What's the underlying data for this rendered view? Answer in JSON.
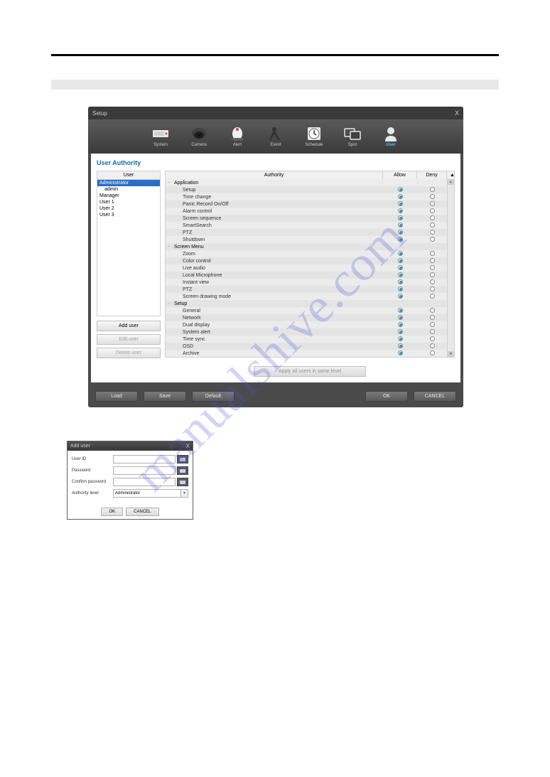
{
  "colors": {
    "accent": "#1a6aa8",
    "toolbar_active": "#4fc3e8",
    "radio_on": "#2a9ad0",
    "selection": "#2a6ec8",
    "row_odd": "#ececec",
    "row_even": "#e4e4e4"
  },
  "typography": {
    "base_font": "Arial",
    "title_pt": 9,
    "body_pt": 7
  },
  "watermark": "manualshive.com",
  "setup": {
    "title": "Setup",
    "close": "X",
    "toolbar": [
      {
        "key": "system",
        "label": "System",
        "active": false
      },
      {
        "key": "camera",
        "label": "Camera",
        "active": false
      },
      {
        "key": "alert",
        "label": "Alert",
        "active": false
      },
      {
        "key": "event",
        "label": "Event",
        "active": false
      },
      {
        "key": "schedule",
        "label": "Schedule",
        "active": false
      },
      {
        "key": "spot",
        "label": "Spot",
        "active": false
      },
      {
        "key": "user",
        "label": "User",
        "active": true
      }
    ],
    "panel_title": "User Authority",
    "user_header": "User",
    "users": [
      {
        "label": "Administrator",
        "level": 0,
        "selected": true
      },
      {
        "label": "admin",
        "level": 1,
        "selected": false
      },
      {
        "label": "Manager",
        "level": 0,
        "selected": false
      },
      {
        "label": "User 1",
        "level": 0,
        "selected": false
      },
      {
        "label": "User 2",
        "level": 0,
        "selected": false
      },
      {
        "label": "User 3",
        "level": 0,
        "selected": false
      }
    ],
    "user_buttons": {
      "add": "Add user",
      "edit": "Edit user",
      "delete": "Delete user"
    },
    "authority_header": "Authority",
    "allow_header": "Allow",
    "deny_header": "Deny",
    "authorities": [
      {
        "label": "Application",
        "group": true,
        "expand": "-",
        "allow": null,
        "deny": null
      },
      {
        "label": "Setup",
        "group": false,
        "allow": true,
        "deny": false
      },
      {
        "label": "Time change",
        "group": false,
        "allow": true,
        "deny": false
      },
      {
        "label": "Panic Record On/Off",
        "group": false,
        "allow": true,
        "deny": false
      },
      {
        "label": "Alarm control",
        "group": false,
        "allow": true,
        "deny": false
      },
      {
        "label": "Screen sequence",
        "group": false,
        "allow": true,
        "deny": false
      },
      {
        "label": "SmartSearch",
        "group": false,
        "allow": true,
        "deny": false
      },
      {
        "label": "PTZ",
        "group": false,
        "allow": true,
        "deny": false
      },
      {
        "label": "Shutdown",
        "group": false,
        "allow": true,
        "deny": false
      },
      {
        "label": "Screen Menu",
        "group": true,
        "expand": "-",
        "allow": null,
        "deny": null
      },
      {
        "label": "Zoom",
        "group": false,
        "allow": true,
        "deny": false
      },
      {
        "label": "Color control",
        "group": false,
        "allow": true,
        "deny": false
      },
      {
        "label": "Live audio",
        "group": false,
        "allow": true,
        "deny": false
      },
      {
        "label": "Local Microphone",
        "group": false,
        "allow": true,
        "deny": false
      },
      {
        "label": "Instant view",
        "group": false,
        "allow": true,
        "deny": false
      },
      {
        "label": "PTZ",
        "group": false,
        "allow": true,
        "deny": false
      },
      {
        "label": "Screen drawing mode",
        "group": false,
        "allow": true,
        "deny": false
      },
      {
        "label": "Setup",
        "group": true,
        "expand": "-",
        "allow": null,
        "deny": null
      },
      {
        "label": "General",
        "group": false,
        "allow": true,
        "deny": false
      },
      {
        "label": "Network",
        "group": false,
        "allow": true,
        "deny": false
      },
      {
        "label": "Dual display",
        "group": false,
        "allow": true,
        "deny": false
      },
      {
        "label": "System alert",
        "group": false,
        "allow": true,
        "deny": false
      },
      {
        "label": "Time sync",
        "group": false,
        "allow": true,
        "deny": false
      },
      {
        "label": "OSD",
        "group": false,
        "allow": true,
        "deny": false
      },
      {
        "label": "Archive",
        "group": false,
        "allow": true,
        "deny": false
      }
    ],
    "apply_label": "Apply all users in same level",
    "bottom": {
      "load": "Load",
      "save": "Save",
      "default": "Default",
      "ok": "OK",
      "cancel": "CANCEL"
    }
  },
  "add_user": {
    "title": "Add user",
    "close": "X",
    "fields": {
      "user_id": "User ID",
      "password": "Password",
      "confirm": "Confirm password",
      "level": "Authority level"
    },
    "level_value": "Administrator",
    "ok": "OK",
    "cancel": "CANCEL"
  }
}
